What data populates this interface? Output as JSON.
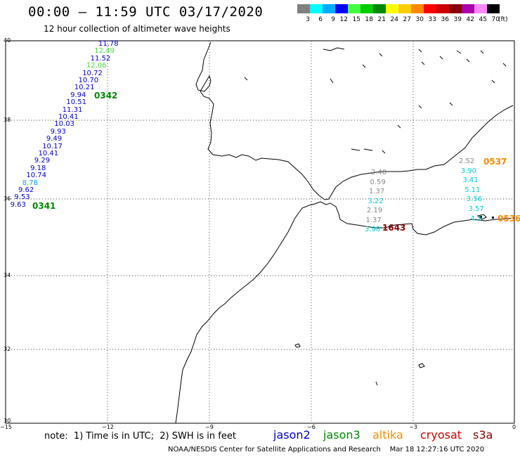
{
  "header": {
    "title": "00:00 – 11:59 UTC 03/17/2020",
    "subtitle": "12 hour collection of altimeter wave heights"
  },
  "scale": {
    "unit": "(ft)",
    "bins": [
      {
        "label": "3",
        "color": "#808080"
      },
      {
        "label": "6",
        "color": "#00FFFF"
      },
      {
        "label": "9",
        "color": "#00AAFF"
      },
      {
        "label": "12",
        "color": "#0000FF"
      },
      {
        "label": "15",
        "color": "#44FF44"
      },
      {
        "label": "18",
        "color": "#00CC00"
      },
      {
        "label": "21",
        "color": "#008800"
      },
      {
        "label": "24",
        "color": "#FFFF00"
      },
      {
        "label": "27",
        "color": "#FFCC00"
      },
      {
        "label": "30",
        "color": "#FF8800"
      },
      {
        "label": "33",
        "color": "#FF0000"
      },
      {
        "label": "36",
        "color": "#CC0000"
      },
      {
        "label": "39",
        "color": "#880000"
      },
      {
        "label": "42",
        "color": "#AA00AA"
      },
      {
        "label": "45",
        "color": "#FF88FF"
      },
      {
        "label": "70",
        "color": "#000000"
      }
    ]
  },
  "axes": {
    "lat_labels": [
      "40",
      "38",
      "36",
      "34",
      "32",
      "30"
    ],
    "lon_labels": [
      "−15",
      "−12",
      "−9",
      "−6",
      "−3",
      "0"
    ]
  },
  "tracks": {
    "west": [
      {
        "v": "11.78",
        "color": "#0000CC"
      },
      {
        "v": "12.49",
        "color": "#44DD44"
      },
      {
        "v": "11.52",
        "color": "#0000CC"
      },
      {
        "v": "12.06",
        "color": "#44DD44"
      },
      {
        "v": "10.72",
        "color": "#0000CC"
      },
      {
        "v": "10.70",
        "color": "#0000CC"
      },
      {
        "v": "10.21",
        "color": "#0000CC"
      },
      {
        "v": "9.94",
        "color": "#0000CC"
      },
      {
        "v": "10.51",
        "color": "#0000CC"
      },
      {
        "v": "11.31",
        "color": "#0000CC"
      },
      {
        "v": "10.41",
        "color": "#0000CC"
      },
      {
        "v": "10.03",
        "color": "#0000CC"
      },
      {
        "v": "9.93",
        "color": "#0000CC"
      },
      {
        "v": "9.49",
        "color": "#0000CC"
      },
      {
        "v": "10.17",
        "color": "#0000CC"
      },
      {
        "v": "10.41",
        "color": "#0000CC"
      },
      {
        "v": "9.29",
        "color": "#0000CC"
      },
      {
        "v": "9.18",
        "color": "#0000CC"
      },
      {
        "v": "10.74",
        "color": "#0000CC"
      },
      {
        "v": "8.78",
        "color": "#00AAEE"
      },
      {
        "v": "9.62",
        "color": "#0000CC"
      },
      {
        "v": "9.53",
        "color": "#0000CC"
      },
      {
        "v": "9.63",
        "color": "#0000CC"
      }
    ],
    "west_passes": [
      "0342",
      "0341"
    ],
    "alboran": [
      {
        "v": "2.40",
        "color": "#888888"
      },
      {
        "v": "0.59",
        "color": "#888888"
      },
      {
        "v": "1.37",
        "color": "#888888"
      },
      {
        "v": "3.22",
        "color": "#00CCDD"
      },
      {
        "v": "2.19",
        "color": "#888888"
      },
      {
        "v": "1.37",
        "color": "#888888"
      },
      {
        "v": "3.98",
        "color": "#00CCDD"
      }
    ],
    "alboran_pass": "1643",
    "east": [
      {
        "v": "2.52",
        "color": "#888888"
      },
      {
        "v": "3.90",
        "color": "#00CCDD"
      },
      {
        "v": "3.41",
        "color": "#00CCDD"
      },
      {
        "v": "5.11",
        "color": "#00CCDD"
      },
      {
        "v": "3.56",
        "color": "#00CCDD"
      },
      {
        "v": "3.57",
        "color": "#00CCDD"
      },
      {
        "v": "4.2",
        "color": "#00CCDD"
      }
    ],
    "east_passes": [
      "0537",
      "0536"
    ]
  },
  "footer": {
    "note": "note:  1) Time is in UTC;  2) SWH is in feet",
    "satellites": [
      {
        "name": "jason2",
        "color": "#0000CC"
      },
      {
        "name": "jason3",
        "color": "#008800"
      },
      {
        "name": "altika",
        "color": "#FF8800"
      },
      {
        "name": "cryosat",
        "color": "#CC0000"
      },
      {
        "name": "s3a",
        "color": "#880000"
      }
    ],
    "credit": "NOAA/NESDIS Center for Satellite Applications and Research    Mar 18 12:27:16 UTC 2020"
  }
}
